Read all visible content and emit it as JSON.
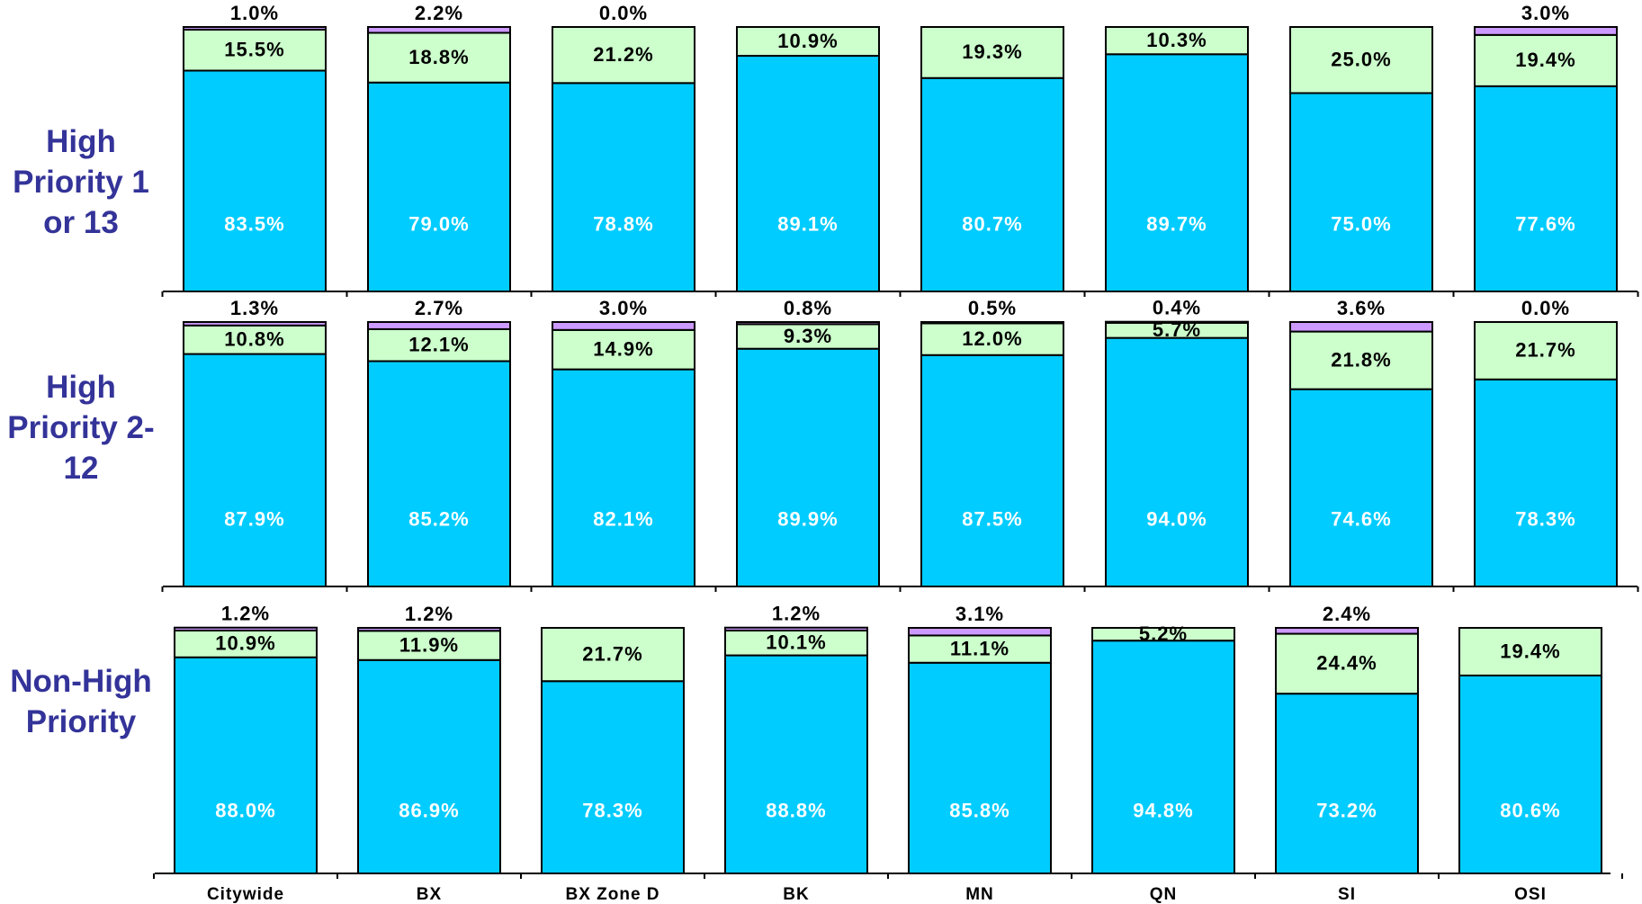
{
  "chart_data": [
    {
      "type": "stacked_bar",
      "title": "High Priority 1 or 13",
      "ylim": [
        0,
        100
      ],
      "series": [
        {
          "color": "#00ccff",
          "values": [
            83.5,
            79.0,
            78.8,
            89.1,
            80.7,
            89.7,
            75.0,
            77.6
          ],
          "value_labels": [
            "83.5%",
            "79.0%",
            "78.8%",
            "89.1%",
            "80.7%",
            "89.7%",
            "75.0%",
            "77.6%"
          ]
        },
        {
          "color": "#ccffcc",
          "values": [
            15.5,
            18.8,
            21.2,
            10.9,
            19.3,
            10.3,
            25.0,
            19.4
          ],
          "value_labels": [
            "15.5%",
            "18.8%",
            "21.2%",
            "10.9%",
            "19.3%",
            "10.3%",
            "25.0%",
            "19.4%"
          ]
        },
        {
          "color": "#cc99ff",
          "values": [
            1.0,
            2.2,
            0.0,
            null,
            null,
            null,
            null,
            3.0
          ],
          "value_labels": [
            "1.0%",
            "2.2%",
            "0.0%",
            null,
            null,
            null,
            null,
            "3.0%"
          ]
        }
      ]
    },
    {
      "type": "stacked_bar",
      "title": "High Priority 2-12",
      "ylim": [
        0,
        100
      ],
      "series": [
        {
          "color": "#00ccff",
          "values": [
            87.9,
            85.2,
            82.1,
            89.9,
            87.5,
            94.0,
            74.6,
            78.3
          ],
          "value_labels": [
            "87.9%",
            "85.2%",
            "82.1%",
            "89.9%",
            "87.5%",
            "94.0%",
            "74.6%",
            "78.3%"
          ]
        },
        {
          "color": "#ccffcc",
          "values": [
            10.8,
            12.1,
            14.9,
            9.3,
            12.0,
            5.7,
            21.8,
            21.7
          ],
          "value_labels": [
            "10.8%",
            "12.1%",
            "14.9%",
            "9.3%",
            "12.0%",
            "5.7%",
            "21.8%",
            "21.7%"
          ]
        },
        {
          "color": "#cc99ff",
          "values": [
            1.3,
            2.7,
            3.0,
            0.8,
            0.5,
            0.4,
            3.6,
            0.0
          ],
          "value_labels": [
            "1.3%",
            "2.7%",
            "3.0%",
            "0.8%",
            "0.5%",
            "0.4%",
            "3.6%",
            "0.0%"
          ]
        }
      ]
    },
    {
      "type": "stacked_bar",
      "title": "Non-High Priority",
      "ylim": [
        0,
        100
      ],
      "categories": [
        "Citywide",
        "BX",
        "BX Zone D",
        "BK",
        "MN",
        "QN",
        "SI",
        "OSI"
      ],
      "series": [
        {
          "color": "#00ccff",
          "values": [
            88.0,
            86.9,
            78.3,
            88.8,
            85.8,
            94.8,
            73.2,
            80.6
          ],
          "value_labels": [
            "88.0%",
            "86.9%",
            "78.3%",
            "88.8%",
            "85.8%",
            "94.8%",
            "73.2%",
            "80.6%"
          ]
        },
        {
          "color": "#ccffcc",
          "values": [
            10.9,
            11.9,
            21.7,
            10.1,
            11.1,
            5.2,
            24.4,
            19.4
          ],
          "value_labels": [
            "10.9%",
            "11.9%",
            "21.7%",
            "10.1%",
            "11.1%",
            "5.2%",
            "24.4%",
            "19.4%"
          ]
        },
        {
          "color": "#cc99ff",
          "values": [
            1.2,
            1.2,
            null,
            1.2,
            3.1,
            null,
            2.4,
            null
          ],
          "value_labels": [
            "1.2%",
            "1.2%",
            null,
            "1.2%",
            "3.1%",
            null,
            "2.4%",
            null
          ]
        }
      ]
    }
  ]
}
